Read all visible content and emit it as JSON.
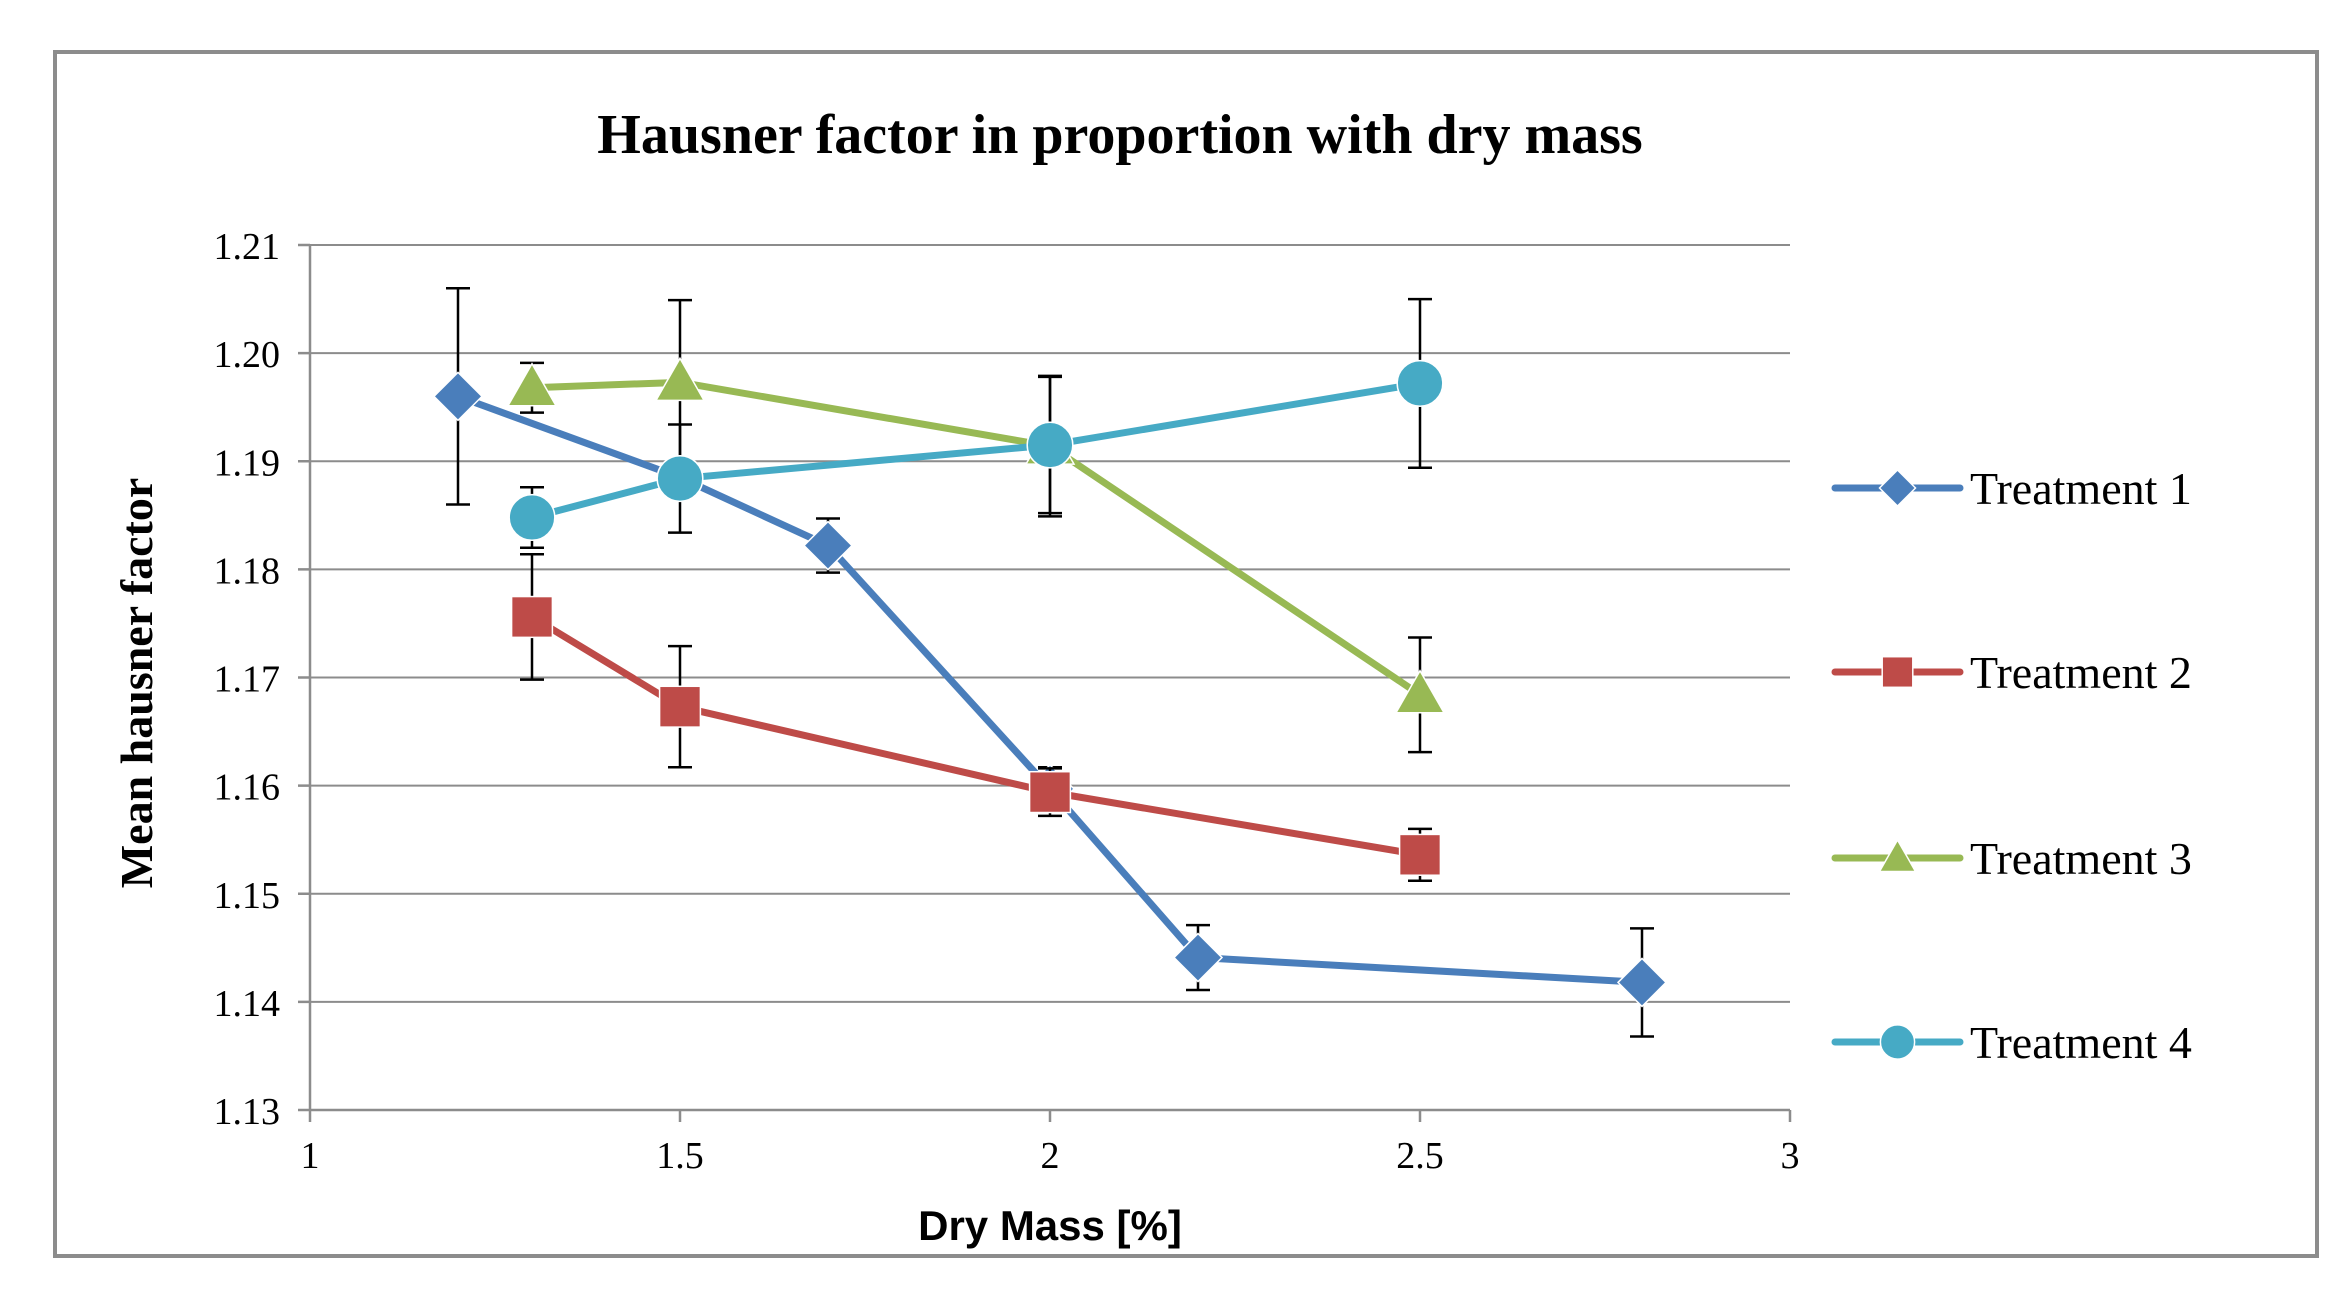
{
  "chart_data": {
    "type": "line",
    "title": "Hausner factor in proportion with dry mass",
    "xlabel": "Dry Mass [%]",
    "ylabel": "Mean hausner factor",
    "xlim": [
      1,
      3
    ],
    "ylim": [
      1.13,
      1.21
    ],
    "x_ticks": [
      1,
      1.5,
      2,
      2.5,
      3
    ],
    "x_tick_labels": [
      "1",
      "1.5",
      "2",
      "2.5",
      "3"
    ],
    "y_ticks": [
      1.13,
      1.14,
      1.15,
      1.16,
      1.17,
      1.18,
      1.19,
      1.2,
      1.21
    ],
    "y_tick_labels": [
      "1.13",
      "1.14",
      "1.15",
      "1.16",
      "1.17",
      "1.18",
      "1.19",
      "1.20",
      "1.21"
    ],
    "grid": "horizontal",
    "legend_position": "right",
    "series": [
      {
        "name": "Treatment 1",
        "color": "#4a7ebb",
        "marker": "diamond",
        "points": [
          {
            "x": 1.2,
            "y": 1.196,
            "err": 0.01
          },
          {
            "x": 1.5,
            "y": 1.1885,
            "err": null
          },
          {
            "x": 1.7,
            "y": 1.1822,
            "err": 0.0025
          },
          {
            "x": 2.0,
            "y": 1.1597,
            "err": 0.002
          },
          {
            "x": 2.2,
            "y": 1.1441,
            "err": 0.003
          },
          {
            "x": 2.8,
            "y": 1.1418,
            "err": 0.005
          }
        ]
      },
      {
        "name": "Treatment 2",
        "color": "#be4b48",
        "marker": "square",
        "points": [
          {
            "x": 1.3,
            "y": 1.1756,
            "err": 0.0058
          },
          {
            "x": 1.5,
            "y": 1.1673,
            "err": 0.0056
          },
          {
            "x": 2.0,
            "y": 1.1594,
            "err": 0.0022
          },
          {
            "x": 2.5,
            "y": 1.1536,
            "err": 0.0024
          }
        ]
      },
      {
        "name": "Treatment 3",
        "color": "#98b954",
        "marker": "triangle",
        "points": [
          {
            "x": 1.3,
            "y": 1.1968,
            "err": 0.0023
          },
          {
            "x": 1.5,
            "y": 1.1973,
            "err": 0.0076
          },
          {
            "x": 2.0,
            "y": 1.1914,
            "err": 0.0065
          },
          {
            "x": 2.5,
            "y": 1.1684,
            "err": 0.0053
          }
        ]
      },
      {
        "name": "Treatment 4",
        "color": "#46aac5",
        "marker": "circle",
        "points": [
          {
            "x": 1.3,
            "y": 1.1848,
            "err": 0.0028
          },
          {
            "x": 1.5,
            "y": 1.1884,
            "err": 0.005
          },
          {
            "x": 2.0,
            "y": 1.1915,
            "err": 0.0063
          },
          {
            "x": 2.5,
            "y": 1.1972,
            "err": 0.0078
          }
        ]
      }
    ]
  }
}
